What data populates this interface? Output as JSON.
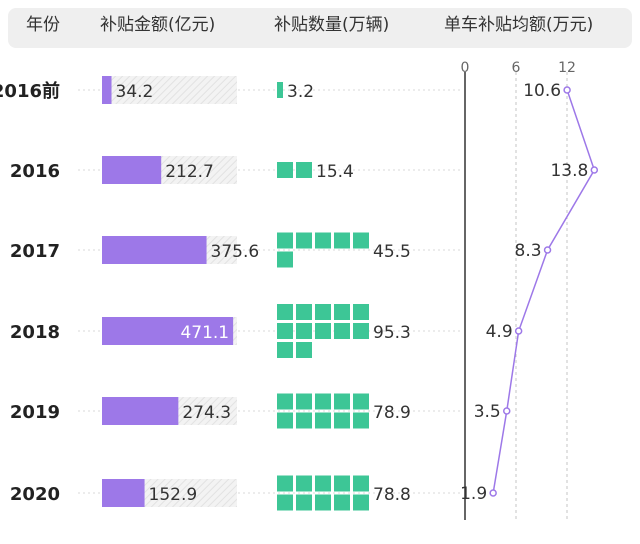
{
  "headers": {
    "year": "年份",
    "subsidy": "补贴金额(亿元)",
    "vehicles": "补贴数量(万辆)",
    "per_vehicle": "单车补贴均额(万元)"
  },
  "colors": {
    "subsidy_bar": "#9d78e8",
    "vehicle_block": "#3dc696",
    "line": "#9d78e8",
    "header_bg": "#efefef"
  },
  "chart_data": [
    {
      "type": "bar",
      "title": "补贴金额(亿元)",
      "categories": [
        "2016前",
        "2016",
        "2017",
        "2018",
        "2019",
        "2020"
      ],
      "values": [
        34.2,
        212.7,
        375.6,
        471.1,
        274.3,
        152.9
      ]
    },
    {
      "type": "bar",
      "title": "补贴数量(万辆)",
      "categories": [
        "2016前",
        "2016",
        "2017",
        "2018",
        "2019",
        "2020"
      ],
      "values": [
        3.2,
        15.4,
        45.5,
        95.3,
        78.9,
        78.8
      ]
    },
    {
      "type": "line",
      "title": "单车补贴均额(万元)",
      "categories": [
        "2016前",
        "2016",
        "2017",
        "2018",
        "2019",
        "2020"
      ],
      "values": [
        10.6,
        13.8,
        8.3,
        4.9,
        3.5,
        1.9
      ],
      "x_ticks": [
        "0",
        "6",
        "12"
      ],
      "xlim": [
        0,
        14
      ]
    }
  ]
}
